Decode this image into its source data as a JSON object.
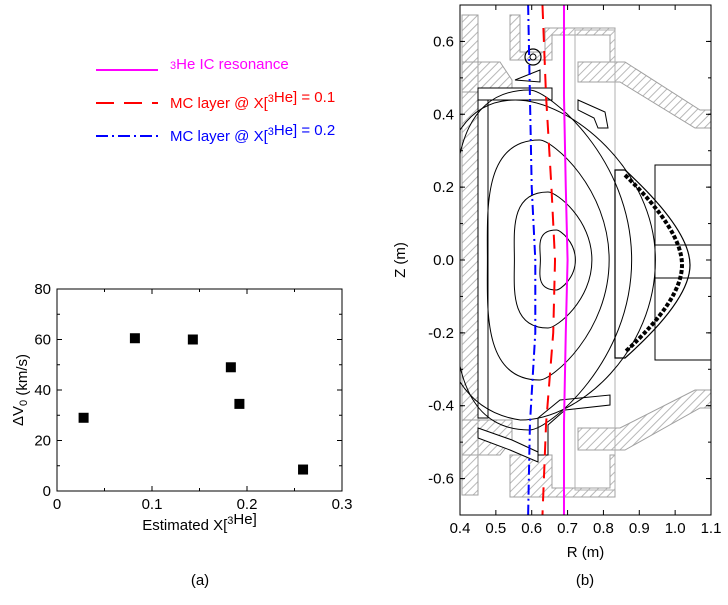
{
  "chart_data": [
    {
      "type": "scatter",
      "panel_label": "(a)",
      "xlabel": "Estimated X[³He]",
      "ylabel": "ΔV0 (km/s)",
      "xlim": [
        0,
        0.3
      ],
      "ylim": [
        0,
        80
      ],
      "x_ticks": [
        "0",
        "0.1",
        "0.2",
        "0.3"
      ],
      "y_ticks": [
        "0",
        "20",
        "40",
        "60",
        "80"
      ],
      "grid": false,
      "points": [
        {
          "x": 0.028,
          "y": 29
        },
        {
          "x": 0.082,
          "y": 60.5
        },
        {
          "x": 0.143,
          "y": 60
        },
        {
          "x": 0.183,
          "y": 49
        },
        {
          "x": 0.192,
          "y": 34.5
        },
        {
          "x": 0.259,
          "y": 8.5
        }
      ]
    },
    {
      "type": "line",
      "panel_label": "(b)",
      "xlabel": "R (m)",
      "ylabel": "Z (m)",
      "xlim": [
        0.4,
        1.1
      ],
      "ylim": [
        -0.7,
        0.7
      ],
      "x_ticks": [
        "0.4",
        "0.5",
        "0.6",
        "0.7",
        "0.8",
        "0.9",
        "1.0",
        "1.1"
      ],
      "y_ticks": [
        "0.6",
        "0.4",
        "0.2",
        "0.0",
        "-0.2",
        "-0.4",
        "-0.6"
      ],
      "legend_position": "left, outside plot",
      "series": [
        {
          "name": "³He IC resonance",
          "color": "#ff00ff",
          "style": "solid",
          "points": [
            [
              0.69,
              0.7
            ],
            [
              0.69,
              0.45
            ],
            [
              0.695,
              0.2
            ],
            [
              0.7,
              0.0
            ],
            [
              0.695,
              -0.2
            ],
            [
              0.69,
              -0.45
            ],
            [
              0.69,
              -0.7
            ]
          ]
        },
        {
          "name": "MC layer @ X[³He] = 0.1",
          "color": "#ff0000",
          "style": "dashed",
          "points": [
            [
              0.63,
              0.7
            ],
            [
              0.64,
              0.45
            ],
            [
              0.655,
              0.2
            ],
            [
              0.665,
              0.0
            ],
            [
              0.66,
              -0.2
            ],
            [
              0.64,
              -0.45
            ],
            [
              0.63,
              -0.7
            ]
          ]
        },
        {
          "name": "MC layer @ X[³He] = 0.2",
          "color": "#0000ff",
          "style": "dash-dot",
          "points": [
            [
              0.59,
              0.7
            ],
            [
              0.595,
              0.45
            ],
            [
              0.6,
              0.2
            ],
            [
              0.61,
              0.0
            ],
            [
              0.61,
              -0.2
            ],
            [
              0.595,
              -0.45
            ],
            [
              0.59,
              -0.7
            ]
          ]
        }
      ],
      "flux_surface_center": [
        0.68,
        0.0
      ]
    }
  ]
}
